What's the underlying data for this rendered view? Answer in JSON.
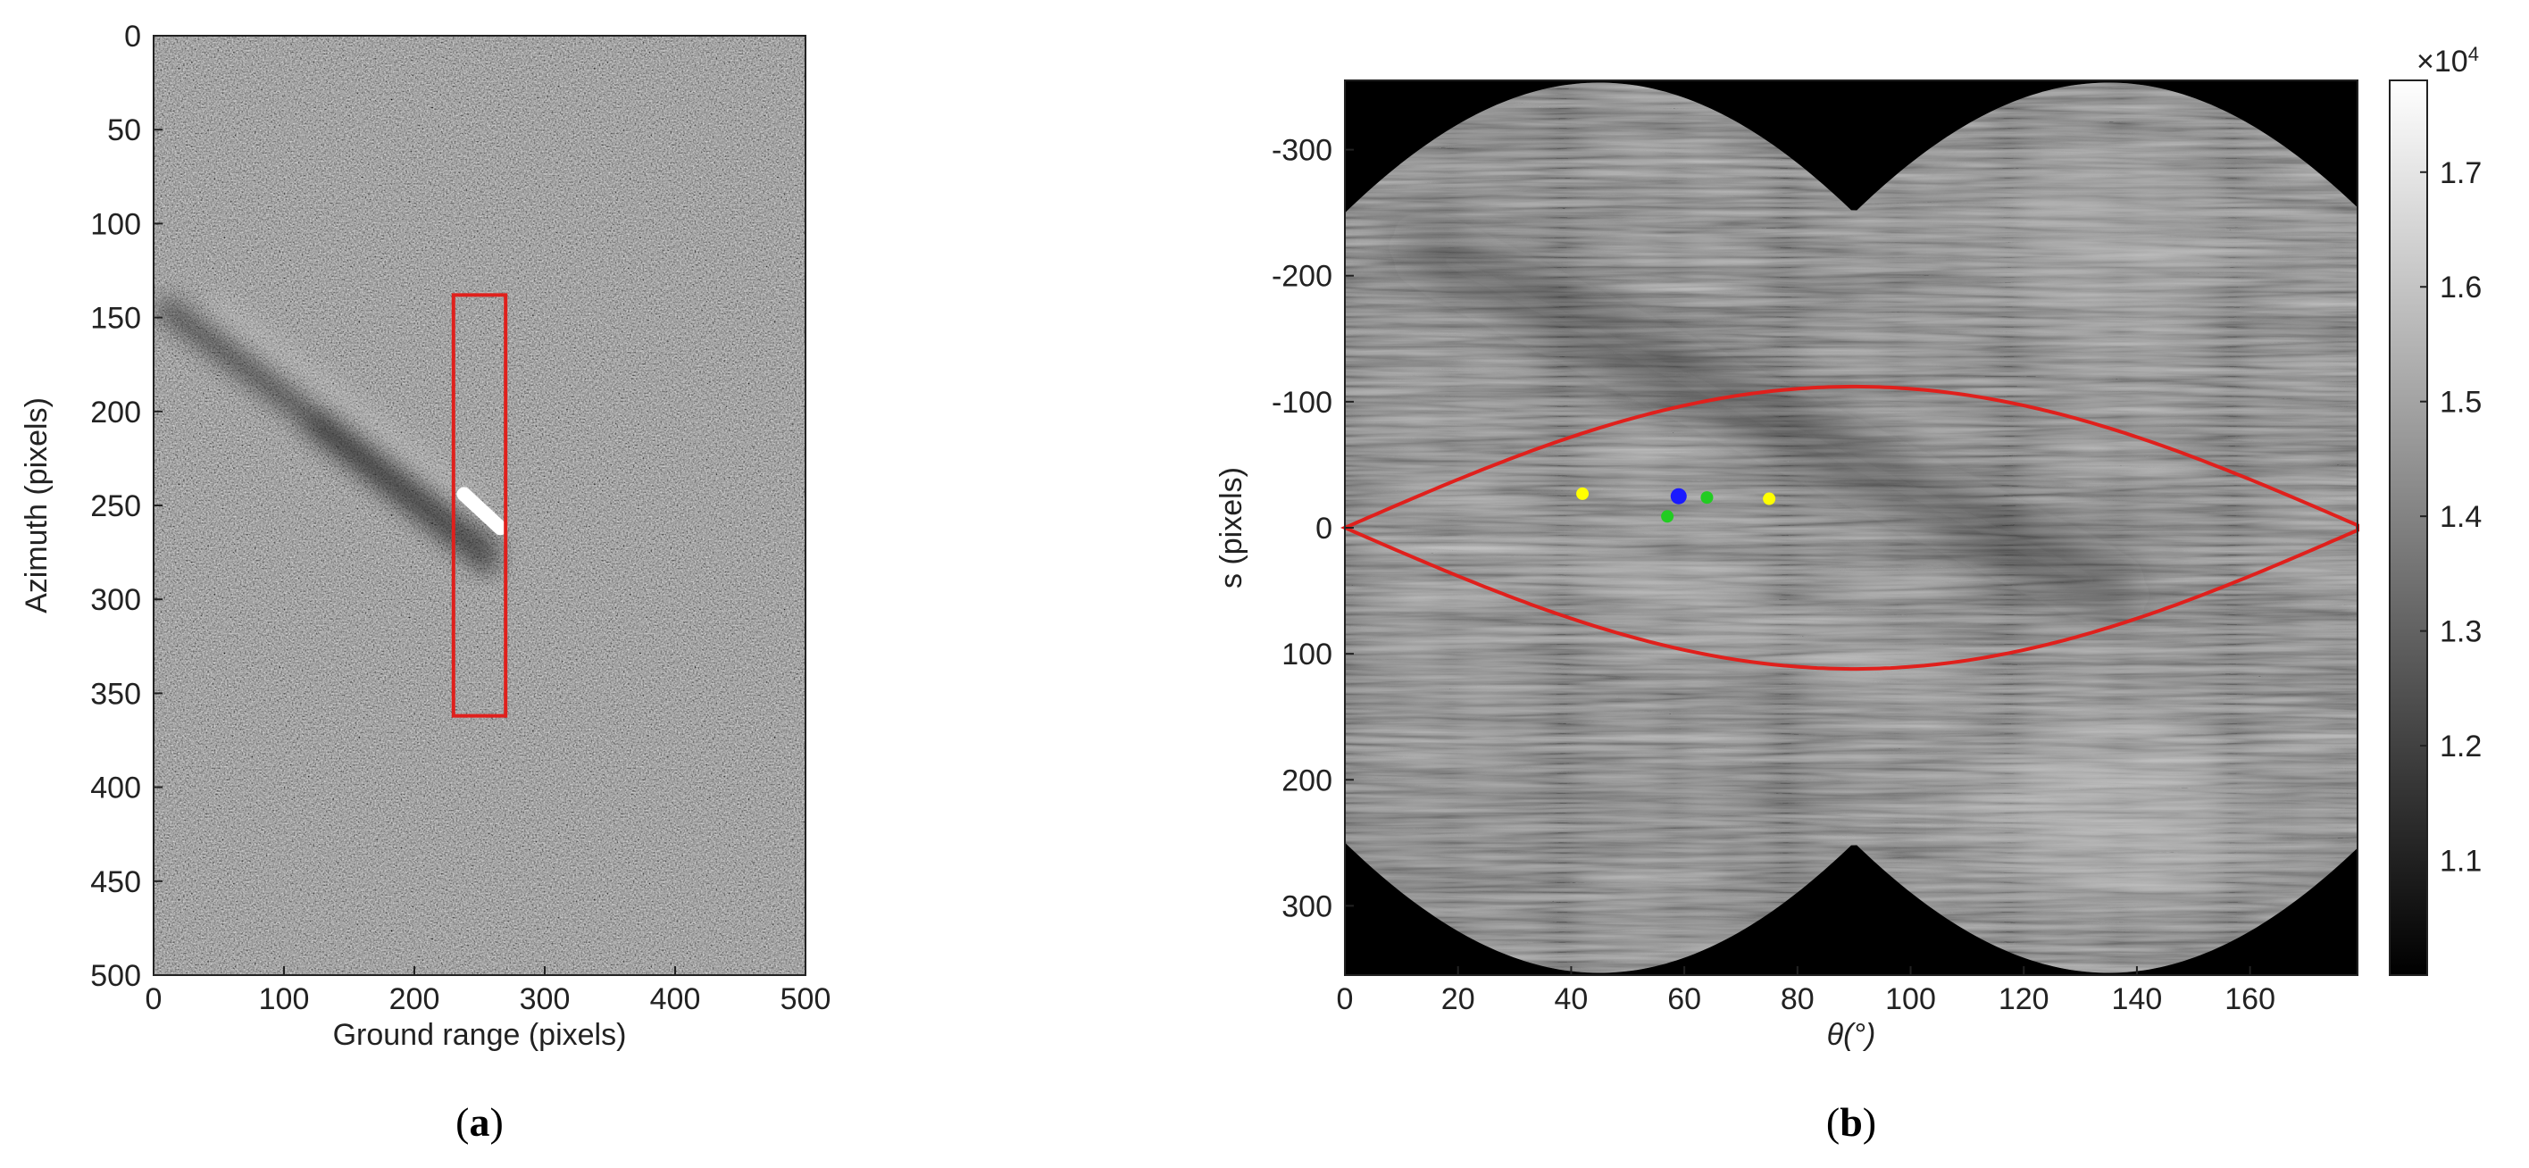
{
  "chart_data": [
    {
      "type": "heatmap",
      "caption": {
        "open": "(",
        "letter": "a",
        "close": ")"
      },
      "xlabel": "Ground range (pixels)",
      "ylabel": "Azimuth (pixels)",
      "xlim": [
        0,
        500
      ],
      "ylim": [
        0,
        500
      ],
      "xticks": [
        "0",
        "100",
        "200",
        "300",
        "400",
        "500"
      ],
      "yticks": [
        "0",
        "50",
        "100",
        "150",
        "200",
        "250",
        "300",
        "350",
        "400",
        "450",
        "500"
      ],
      "colormap": "gray",
      "highlight_box": {
        "x0": 230,
        "x1": 270,
        "y0": 138,
        "y1": 362,
        "color": "#e0201c"
      },
      "bright_target": {
        "x0": 238,
        "y0": 244,
        "x1": 266,
        "y1": 262
      },
      "wake": {
        "from": [
          5,
          138
        ],
        "to": [
          262,
          268
        ]
      }
    },
    {
      "type": "heatmap",
      "caption": {
        "open": "(",
        "letter": "b",
        "close": ")"
      },
      "xlabel": "θ(°)",
      "ylabel": "s (pixels)",
      "xlim": [
        0,
        179
      ],
      "ylim": [
        -355,
        355
      ],
      "xticks": [
        "0",
        "20",
        "40",
        "60",
        "80",
        "100",
        "120",
        "140",
        "160"
      ],
      "yticks": [
        "-300",
        "-200",
        "-100",
        "0",
        "100",
        "200",
        "300"
      ],
      "colormap": "gray",
      "colorbar": {
        "ticks": [
          "1.1",
          "1.2",
          "1.3",
          "1.4",
          "1.5",
          "1.6",
          "1.7"
        ],
        "range": [
          1.0,
          1.78
        ],
        "multiplier": "×10",
        "exponent": "4"
      },
      "red_curve": {
        "amplitude": 112,
        "color": "#e0201c"
      },
      "markers": [
        {
          "theta": 42,
          "s": -27,
          "color": "#ffff00"
        },
        {
          "theta": 75,
          "s": -23,
          "color": "#ffff00"
        },
        {
          "theta": 59,
          "s": -25,
          "color": "#1a1aff"
        },
        {
          "theta": 64,
          "s": -24,
          "color": "#22cc22"
        },
        {
          "theta": 57,
          "s": -9,
          "color": "#22cc22"
        }
      ]
    }
  ]
}
